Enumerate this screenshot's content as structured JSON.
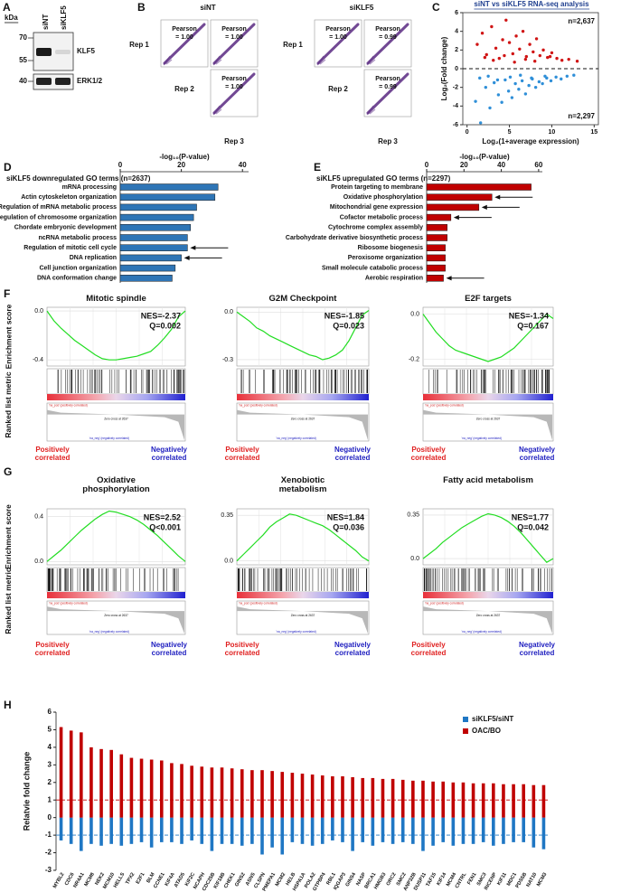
{
  "chart_data": [
    {
      "panel": "A",
      "type": "blot",
      "unit_label": "kDa",
      "markers": [
        70,
        55,
        40
      ],
      "lanes": [
        "siNT",
        "siKLF5"
      ],
      "proteins": [
        "KLF5",
        "ERK1/2"
      ]
    },
    {
      "panel": "B",
      "type": "correlation_matrix",
      "stat_label": "Pearson",
      "reps": [
        "Rep 1",
        "Rep 2",
        "Rep 3"
      ],
      "groups": [
        {
          "name": "siNT",
          "values": [
            1,
            1,
            1
          ],
          "value_labels": [
            "= 1.00",
            "= 1.00",
            "= 1.00"
          ]
        },
        {
          "name": "siKLF5",
          "values": [
            1,
            0.99,
            0.99
          ],
          "value_labels": [
            "= 1.00",
            "= 0.99",
            "= 0.99"
          ]
        }
      ]
    },
    {
      "panel": "C",
      "type": "scatter",
      "title": "siNT vs siKLF5 RNA-seq analysis",
      "xlabel": "Log₂(1+average expression)",
      "ylabel": "Log₂(Fold change)",
      "xlim": [
        -0.5,
        15.5
      ],
      "xticks": [
        0,
        5,
        10,
        15
      ],
      "ylim": [
        -6,
        6
      ],
      "yticks": [
        -6,
        -4,
        -2,
        0,
        2,
        4,
        6
      ],
      "hline": 0,
      "annotations": [
        "n=2,637",
        "n=2,297"
      ],
      "series": [
        {
          "color": "#d01515",
          "x": [
            1.2,
            1.8,
            2.3,
            2.9,
            3.4,
            3.8,
            4.2,
            4.6,
            5.0,
            5.4,
            5.8,
            6.2,
            6.6,
            7.0,
            7.4,
            7.8,
            8.2,
            8.6,
            9.0,
            9.5,
            10.0,
            10.6,
            11.2,
            12.0,
            13.0,
            2.1,
            3.1,
            4.4,
            5.6,
            6.9,
            8.0,
            9.8
          ],
          "values": [
            2.6,
            3.8,
            1.5,
            4.5,
            2.2,
            1.1,
            3.1,
            5.2,
            2.8,
            1.6,
            3.5,
            2.1,
            4.0,
            1.3,
            2.6,
            1.8,
            3.2,
            1.4,
            2.0,
            1.2,
            1.7,
            1.1,
            0.9,
            1.0,
            0.8,
            1.2,
            0.9,
            1.4,
            0.7,
            1.0,
            0.8,
            1.3
          ]
        },
        {
          "color": "#2f8fd8",
          "x": [
            1.0,
            1.6,
            2.2,
            2.7,
            3.2,
            3.7,
            4.1,
            4.5,
            4.9,
            5.3,
            5.7,
            6.1,
            6.5,
            6.9,
            7.3,
            7.7,
            8.1,
            8.5,
            8.9,
            9.4,
            9.9,
            10.5,
            11.1,
            11.8,
            12.6,
            1.5,
            2.5,
            3.6,
            5.1,
            6.3,
            7.6,
            9.2
          ],
          "values": [
            -3.5,
            -5.8,
            -2.0,
            -4.2,
            -1.5,
            -2.8,
            -3.6,
            -1.2,
            -2.4,
            -3.1,
            -1.6,
            -2.2,
            -1.3,
            -2.7,
            -1.8,
            -1.1,
            -2.0,
            -1.4,
            -1.6,
            -1.0,
            -1.3,
            -0.9,
            -1.1,
            -0.8,
            -0.7,
            -1.0,
            -0.8,
            -1.2,
            -0.9,
            -0.7,
            -1.0,
            -0.8
          ]
        }
      ]
    },
    {
      "panel": "D",
      "type": "barh",
      "title": "siKLF5 downregulated GO terms (n=2637)",
      "xlabel": "-log₁₀(P-value)",
      "xlim": [
        0,
        42
      ],
      "xticks": [
        0,
        20,
        40
      ],
      "color": "#2e75b6",
      "categories": [
        "mRNA processing",
        "Actin cytoskeleton organization",
        "Regulation of mRNA metabolic process",
        "Regulation of chromosome organization",
        "Chordate embryonic development",
        "ncRNA metabolic process",
        "Regulation of mitotic cell cycle",
        "DNA replication",
        "Cell junction organization",
        "DNA conformation change"
      ],
      "values": [
        32,
        31,
        25,
        24,
        23,
        22,
        22,
        20,
        18,
        17
      ],
      "arrows": [
        6,
        7
      ]
    },
    {
      "panel": "E",
      "type": "barh",
      "title": "siKLF5 upregulated GO terms (n=2297)",
      "xlabel": "-log₁₀(P-value)",
      "xlim": [
        0,
        62
      ],
      "xticks": [
        0,
        20,
        40,
        60
      ],
      "color": "#c00000",
      "categories": [
        "Protein targeting to membrane",
        "Oxidative phosphorylation",
        "Mitochondrial gene expression",
        "Cofactor metabolic process",
        "Cytochrome complex assembly",
        "Carbohydrate derivative biosynthetic process",
        "Ribosome biogenesis",
        "Peroxisome organization",
        "Small molecule catabolic process",
        "Aerobic respiration"
      ],
      "values": [
        56,
        35,
        28,
        13,
        11,
        11,
        10,
        10,
        10,
        9
      ],
      "arrows": [
        1,
        2,
        3,
        9
      ]
    },
    {
      "panel": "F",
      "type": "gsea",
      "ylabel": "Enrichment score",
      "metric_label": "Ranked list metric",
      "pos_label": "Positively correlated",
      "neg_label": "Negatively correlated",
      "pos_tag": "'na_pos' (positively correlated)",
      "zero_label": "Zero cross at 2637",
      "neg_tag": "'na_neg' (negatively correlated)",
      "line_color": "#22dd22",
      "plots": [
        {
          "title": "Mitotic spindle",
          "nes_label": "NES=-2.37",
          "q_label": "Q=0.002",
          "ylim": [
            -0.45,
            0.03
          ],
          "yticks": [
            {
              "value": 0,
              "label": "0.0"
            },
            -0.4
          ],
          "values": [
            0,
            -0.08,
            -0.14,
            -0.19,
            -0.24,
            -0.28,
            -0.32,
            -0.36,
            -0.39,
            -0.4,
            -0.4,
            -0.39,
            -0.38,
            -0.37,
            -0.35,
            -0.33,
            -0.28,
            -0.22,
            -0.15,
            -0.05,
            0
          ]
        },
        {
          "title": "G2M Checkpoint",
          "nes_label": "NES=-1.85",
          "q_label": "Q=0.023",
          "ylim": [
            -0.34,
            0.03
          ],
          "yticks": [
            {
              "value": 0,
              "label": "0.0"
            },
            -0.3
          ],
          "values": [
            0,
            -0.03,
            -0.06,
            -0.1,
            -0.12,
            -0.15,
            -0.17,
            -0.19,
            -0.21,
            -0.23,
            -0.25,
            -0.27,
            -0.28,
            -0.3,
            -0.29,
            -0.27,
            -0.24,
            -0.18,
            -0.1,
            -0.02,
            0.01
          ]
        },
        {
          "title": "E2F targets",
          "nes_label": "NES=-1.34",
          "q_label": "Q=0.167",
          "ylim": [
            -0.23,
            0.03
          ],
          "yticks": [
            {
              "value": 0,
              "label": "0.0"
            },
            -0.2
          ],
          "values": [
            0,
            -0.04,
            -0.08,
            -0.11,
            -0.14,
            -0.16,
            -0.17,
            -0.18,
            -0.19,
            -0.2,
            -0.21,
            -0.2,
            -0.19,
            -0.17,
            -0.15,
            -0.12,
            -0.09,
            -0.06,
            -0.03,
            0,
            -0.02
          ]
        }
      ]
    },
    {
      "panel": "G",
      "type": "gsea",
      "ylabel": "Enrichment score",
      "metric_label": "Ranked list metric",
      "pos_label": "Positively correlated",
      "neg_label": "Negatively correlated",
      "pos_tag": "'na_pos' (positively correlated)",
      "zero_label": "Zero cross at 2637",
      "neg_tag": "'na_neg' (negatively correlated)",
      "line_color": "#22dd22",
      "plots": [
        {
          "title": "Oxidative phosphorylation",
          "nes_label": "NES=2.52",
          "q_label": "Q<0.001",
          "ylim": [
            -0.03,
            0.47
          ],
          "yticks": [
            {
              "value": 0,
              "label": "0.0"
            },
            0.4
          ],
          "values": [
            0,
            0.05,
            0.1,
            0.16,
            0.22,
            0.28,
            0.33,
            0.38,
            0.42,
            0.45,
            0.44,
            0.42,
            0.4,
            0.37,
            0.33,
            0.28,
            0.23,
            0.17,
            0.11,
            0.05,
            0
          ]
        },
        {
          "title": "Xenobiotic metabolism",
          "nes_label": "NES=1.84",
          "q_label": "Q=0.036",
          "ylim": [
            -0.03,
            0.4
          ],
          "yticks": [
            {
              "value": 0,
              "label": "0.0"
            },
            0.35
          ],
          "values": [
            0,
            0.05,
            0.1,
            0.15,
            0.2,
            0.26,
            0.3,
            0.33,
            0.36,
            0.35,
            0.33,
            0.31,
            0.29,
            0.27,
            0.24,
            0.2,
            0.16,
            0.12,
            0.08,
            0.03,
            0
          ]
        },
        {
          "title": "Fatty acid metabolism",
          "nes_label": "NES=1.77",
          "q_label": "Q=0.042",
          "ylim": [
            -0.05,
            0.4
          ],
          "yticks": [
            {
              "value": 0,
              "label": "0.0"
            },
            0.35
          ],
          "values": [
            0,
            0.04,
            0.08,
            0.13,
            0.17,
            0.21,
            0.25,
            0.28,
            0.31,
            0.34,
            0.36,
            0.35,
            0.33,
            0.3,
            0.26,
            0.21,
            0.15,
            0.09,
            0.03,
            -0.03,
            0
          ]
        }
      ]
    },
    {
      "panel": "H",
      "type": "bar",
      "ylabel": "Relatvie fold change",
      "ylim": [
        -3,
        6
      ],
      "yticks": [
        -3,
        -2,
        -1,
        0,
        1,
        2,
        3,
        4,
        5,
        6
      ],
      "legend": "top-right",
      "categories": [
        "MYBL2",
        "CDC6",
        "NR4A1",
        "MCM8",
        "NEK2",
        "MCM10",
        "HELLS",
        "TPX2",
        "E2F1",
        "BLM",
        "CCNE1",
        "KIF4A",
        "ATAD5",
        "KIF2C",
        "NCAPH",
        "CDC25B",
        "KIF18B",
        "CHEK1",
        "GINS2",
        "ASNS",
        "CLSPN",
        "PMEPA1",
        "MCM2",
        "HELB",
        "HSPA1A",
        "POLA2",
        "GTPBP4",
        "RBL1",
        "IQGAP3",
        "GINS4",
        "NASP",
        "BRCA1",
        "HMGB3",
        "ORC2",
        "SMC2",
        "ANP32B",
        "DUSP11",
        "TAF15",
        "KIF14",
        "MCM4",
        "CNTRL",
        "FEN1",
        "SMC3",
        "INCENP",
        "KIF11",
        "MDC1",
        "PDS5B",
        "NAT10",
        "MCM3"
      ],
      "series": [
        {
          "name": "siKLF5/siNT",
          "color": "#1f77c4",
          "values": [
            -1.3,
            -1.5,
            -1.9,
            -1.5,
            -1.6,
            -1.5,
            -1.6,
            -1.5,
            -1.4,
            -1.7,
            -1.4,
            -1.4,
            -1.5,
            -1.3,
            -1.5,
            -1.9,
            -1.5,
            -1.5,
            -1.6,
            -1.5,
            -2.1,
            -1.7,
            -2.1,
            -1.4,
            -1.5,
            -1.6,
            -1.5,
            -1.3,
            -1.4,
            -1.9,
            -1.4,
            -1.6,
            -1.4,
            -1.5,
            -1.4,
            -1.5,
            -1.9,
            -1.6,
            -1.4,
            -1.6,
            -1.5,
            -1.5,
            -1.4,
            -1.6,
            -1.5,
            -1.4,
            -1.4,
            -1.7,
            -1.8
          ]
        },
        {
          "name": "OAC/BO",
          "color": "#c00000",
          "values": [
            5.15,
            4.95,
            4.85,
            4.0,
            3.9,
            3.85,
            3.6,
            3.4,
            3.35,
            3.3,
            3.25,
            3.1,
            3.05,
            2.95,
            2.9,
            2.85,
            2.85,
            2.8,
            2.75,
            2.7,
            2.7,
            2.65,
            2.6,
            2.55,
            2.5,
            2.45,
            2.4,
            2.35,
            2.35,
            2.3,
            2.25,
            2.25,
            2.2,
            2.2,
            2.15,
            2.1,
            2.1,
            2.05,
            2.05,
            2.0,
            2.0,
            1.95,
            1.95,
            1.95,
            1.9,
            1.9,
            1.9,
            1.85,
            1.85
          ]
        }
      ],
      "hlines": [
        {
          "value": 1,
          "color": "#c00000"
        },
        {
          "value": -1,
          "color": "#1f77c4"
        }
      ]
    }
  ]
}
